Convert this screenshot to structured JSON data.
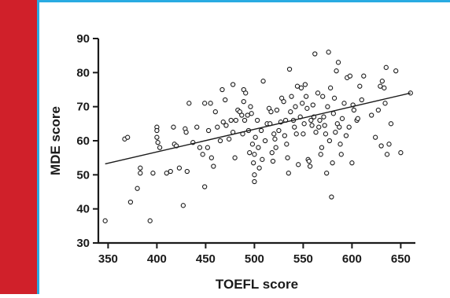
{
  "colors": {
    "accent_bar": "#d0202a",
    "rule": "#29abe2",
    "axis": "#1a1a1a",
    "marker_edge": "#1a1a1a",
    "marker_fill": "#ffffff",
    "trend_line": "#1a1a1a"
  },
  "chart_data": {
    "type": "scatter",
    "title": "",
    "xlabel": "TOEFL score",
    "ylabel": "MDE score",
    "xlim": [
      340,
      665
    ],
    "ylim": [
      30,
      90
    ],
    "xticks": [
      350,
      400,
      450,
      500,
      550,
      600,
      650
    ],
    "yticks": [
      30,
      40,
      50,
      60,
      70,
      80,
      90
    ],
    "grid": false,
    "legend": "none",
    "marker": "open-circle",
    "trend_line": {
      "x": [
        347,
        660
      ],
      "y": [
        53.2,
        74.0
      ]
    },
    "points": [
      [
        347,
        36.5
      ],
      [
        367,
        60.5
      ],
      [
        370,
        61
      ],
      [
        373,
        42
      ],
      [
        380,
        46
      ],
      [
        383,
        52
      ],
      [
        383,
        50.5
      ],
      [
        393,
        36.5
      ],
      [
        396,
        50.5
      ],
      [
        400,
        64
      ],
      [
        400,
        63
      ],
      [
        400,
        61
      ],
      [
        401,
        59.5
      ],
      [
        403,
        58
      ],
      [
        410,
        50.5
      ],
      [
        414,
        51
      ],
      [
        417,
        64
      ],
      [
        418,
        59
      ],
      [
        420,
        58.5
      ],
      [
        423,
        52
      ],
      [
        427,
        41
      ],
      [
        429,
        63.5
      ],
      [
        430,
        62.5
      ],
      [
        431,
        51
      ],
      [
        433,
        71
      ],
      [
        437,
        59.5
      ],
      [
        441,
        64
      ],
      [
        444,
        58
      ],
      [
        447,
        56
      ],
      [
        449,
        71
      ],
      [
        449,
        46.5
      ],
      [
        452,
        58
      ],
      [
        453,
        63
      ],
      [
        455,
        71
      ],
      [
        456,
        55
      ],
      [
        458,
        52.5
      ],
      [
        460,
        68.5
      ],
      [
        462,
        64
      ],
      [
        465,
        60
      ],
      [
        467,
        75
      ],
      [
        468,
        65.5
      ],
      [
        470,
        72
      ],
      [
        471,
        64.5
      ],
      [
        474,
        60.5
      ],
      [
        476,
        66
      ],
      [
        478,
        76.5
      ],
      [
        478,
        62.5
      ],
      [
        480,
        55
      ],
      [
        481,
        66
      ],
      [
        483,
        69
      ],
      [
        485,
        68.5
      ],
      [
        487,
        67.5
      ],
      [
        488,
        62
      ],
      [
        489,
        75
      ],
      [
        489,
        71.5
      ],
      [
        490,
        66
      ],
      [
        491,
        74
      ],
      [
        493,
        67.5
      ],
      [
        494,
        63
      ],
      [
        495,
        56.5
      ],
      [
        496,
        70
      ],
      [
        497,
        68
      ],
      [
        498,
        59
      ],
      [
        499,
        53.5
      ],
      [
        500,
        50
      ],
      [
        500,
        48
      ],
      [
        500,
        56
      ],
      [
        501,
        61
      ],
      [
        503,
        66
      ],
      [
        504,
        58
      ],
      [
        505,
        52
      ],
      [
        507,
        63
      ],
      [
        508,
        54.5
      ],
      [
        509,
        77.5
      ],
      [
        511,
        60
      ],
      [
        513,
        65
      ],
      [
        515,
        69.5
      ],
      [
        516,
        65
      ],
      [
        517,
        68.5
      ],
      [
        518,
        56.5
      ],
      [
        519,
        54
      ],
      [
        520,
        62
      ],
      [
        521,
        60.5
      ],
      [
        522,
        58
      ],
      [
        523,
        69
      ],
      [
        525,
        63
      ],
      [
        527,
        65.5
      ],
      [
        528,
        72.5
      ],
      [
        530,
        71.5
      ],
      [
        531,
        61.5
      ],
      [
        532,
        66
      ],
      [
        533,
        59
      ],
      [
        534,
        55
      ],
      [
        535,
        50.5
      ],
      [
        536,
        81
      ],
      [
        537,
        68.5
      ],
      [
        538,
        73
      ],
      [
        540,
        66
      ],
      [
        541,
        64
      ],
      [
        542,
        70
      ],
      [
        543,
        62
      ],
      [
        544,
        76
      ],
      [
        545,
        53
      ],
      [
        547,
        67
      ],
      [
        548,
        75.5
      ],
      [
        549,
        71
      ],
      [
        550,
        62
      ],
      [
        551,
        65
      ],
      [
        552,
        76.5
      ],
      [
        553,
        73
      ],
      [
        554,
        69.5
      ],
      [
        555,
        54.5
      ],
      [
        556,
        54
      ],
      [
        557,
        52.5
      ],
      [
        558,
        66
      ],
      [
        559,
        64.5
      ],
      [
        560,
        70.5
      ],
      [
        561,
        67
      ],
      [
        562,
        85.5
      ],
      [
        563,
        62.5
      ],
      [
        565,
        74
      ],
      [
        566,
        64
      ],
      [
        567,
        66
      ],
      [
        568,
        56
      ],
      [
        569,
        58
      ],
      [
        570,
        73
      ],
      [
        571,
        67
      ],
      [
        572,
        64.5
      ],
      [
        573,
        62
      ],
      [
        574,
        50.5
      ],
      [
        575,
        70
      ],
      [
        576,
        86
      ],
      [
        577,
        60
      ],
      [
        578,
        75.5
      ],
      [
        579,
        43.5
      ],
      [
        580,
        53.5
      ],
      [
        581,
        68
      ],
      [
        582,
        72.5
      ],
      [
        583,
        62.5
      ],
      [
        584,
        80.5
      ],
      [
        585,
        65
      ],
      [
        586,
        83
      ],
      [
        587,
        64
      ],
      [
        588,
        59
      ],
      [
        589,
        56
      ],
      [
        590,
        66.5
      ],
      [
        592,
        71
      ],
      [
        594,
        61.5
      ],
      [
        595,
        78.5
      ],
      [
        597,
        64
      ],
      [
        598,
        79
      ],
      [
        600,
        53.5
      ],
      [
        601,
        70.5
      ],
      [
        602,
        69
      ],
      [
        605,
        66
      ],
      [
        606,
        66.5
      ],
      [
        608,
        76
      ],
      [
        610,
        72
      ],
      [
        612,
        79
      ],
      [
        620,
        67.5
      ],
      [
        624,
        61
      ],
      [
        627,
        69
      ],
      [
        629,
        76
      ],
      [
        630,
        58.5
      ],
      [
        631,
        77.5
      ],
      [
        633,
        75.5
      ],
      [
        634,
        71
      ],
      [
        635,
        81.5
      ],
      [
        636,
        56
      ],
      [
        638,
        59
      ],
      [
        640,
        65
      ],
      [
        645,
        80.5
      ],
      [
        650,
        56.5
      ],
      [
        660,
        74
      ]
    ]
  }
}
